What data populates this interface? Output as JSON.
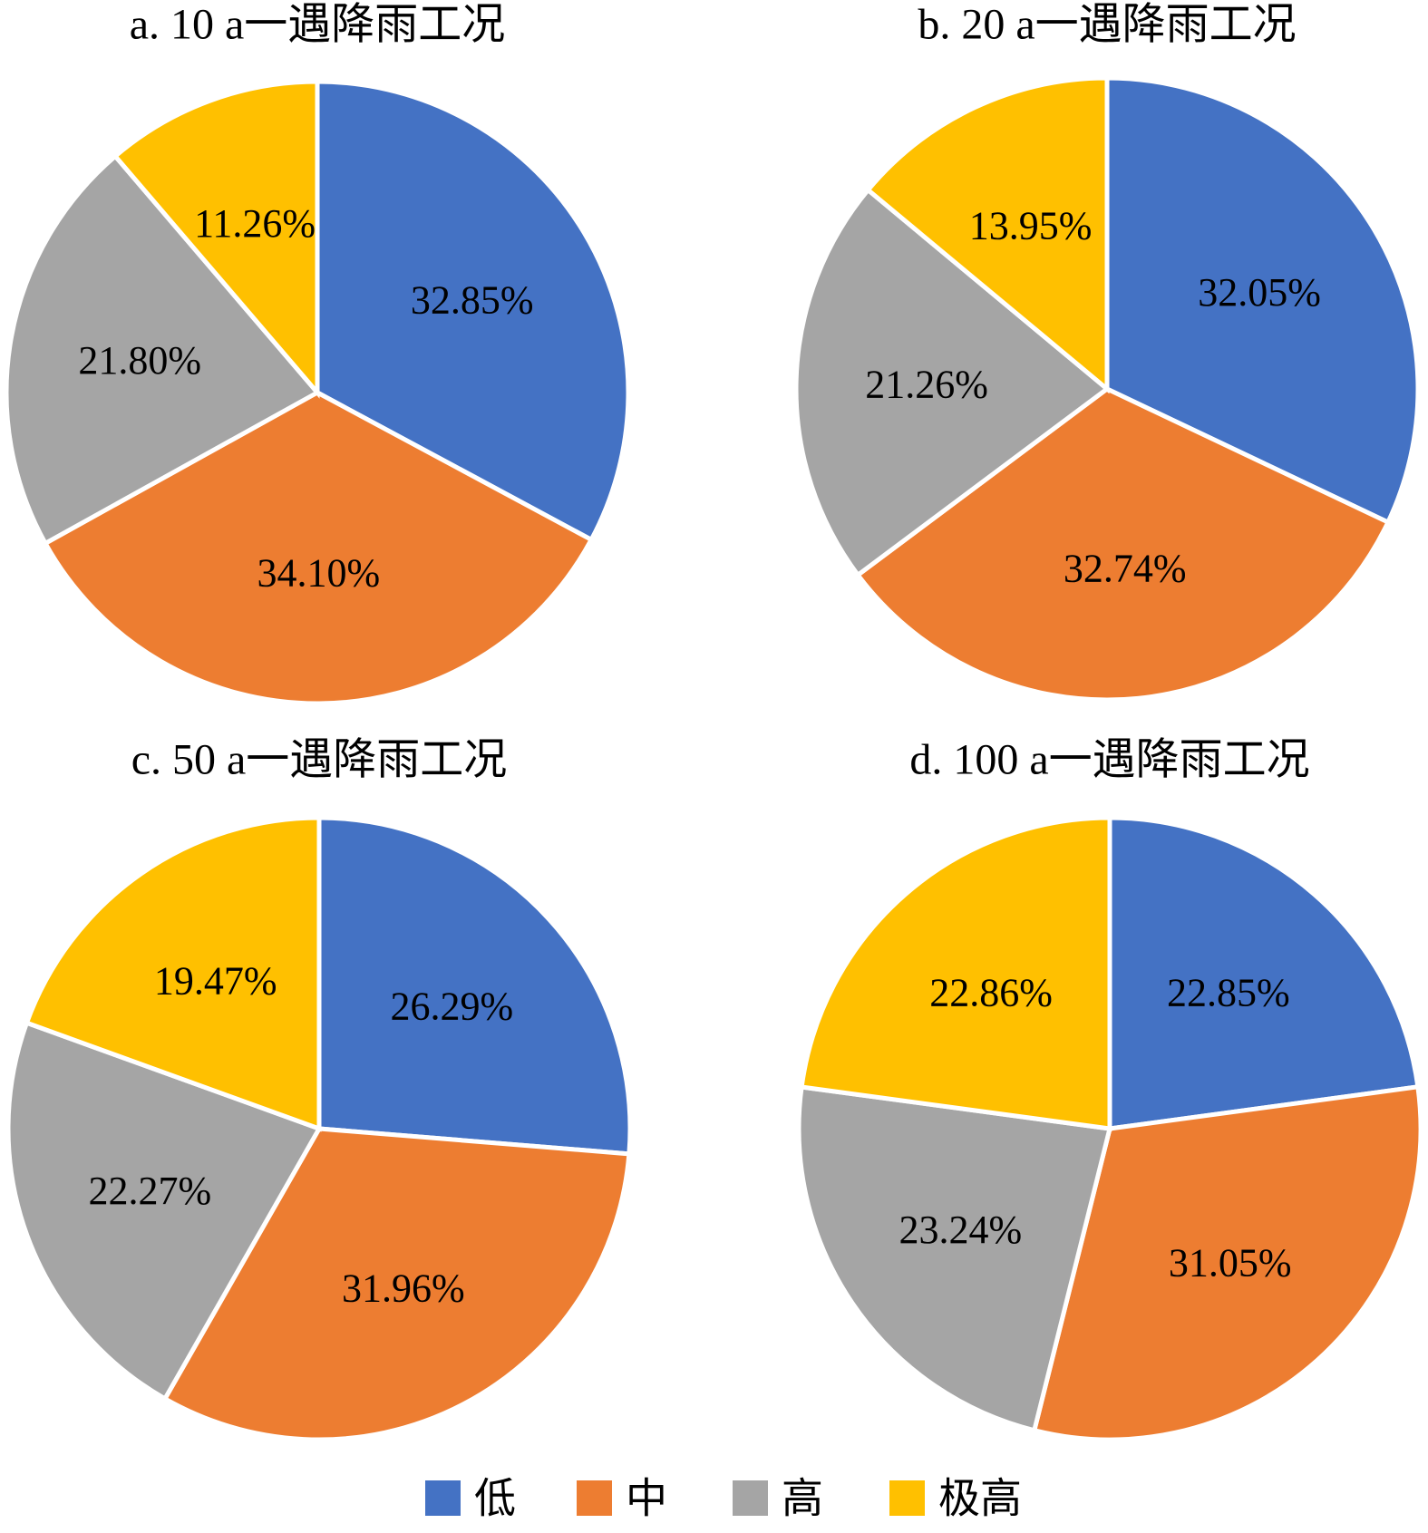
{
  "chart_data": [
    {
      "type": "pie",
      "title": "a. 10 a一遇降雨工况",
      "values": [
        32.85,
        34.1,
        21.8,
        11.26
      ],
      "value_labels": [
        "32.85%",
        "34.10%",
        "21.80%",
        "11.26%"
      ]
    },
    {
      "type": "pie",
      "title": "b. 20 a一遇降雨工况",
      "values": [
        32.05,
        32.74,
        21.26,
        13.95
      ],
      "value_labels": [
        "32.05%",
        "32.74%",
        "21.26%",
        "13.95%"
      ]
    },
    {
      "type": "pie",
      "title": "c. 50 a一遇降雨工况",
      "values": [
        26.29,
        31.96,
        22.27,
        19.47
      ],
      "value_labels": [
        "26.29%",
        "31.96%",
        "22.27%",
        "19.47%"
      ]
    },
    {
      "type": "pie",
      "title": "d. 100 a一遇降雨工况",
      "values": [
        22.85,
        31.05,
        23.24,
        22.86
      ],
      "value_labels": [
        "22.85%",
        "31.05%",
        "23.24%",
        "22.86%"
      ]
    }
  ],
  "legend": {
    "labels": [
      "低",
      "中",
      "高",
      "极高"
    ],
    "colors": [
      "#4472c4",
      "#ed7d31",
      "#a5a5a5",
      "#ffc000"
    ]
  }
}
